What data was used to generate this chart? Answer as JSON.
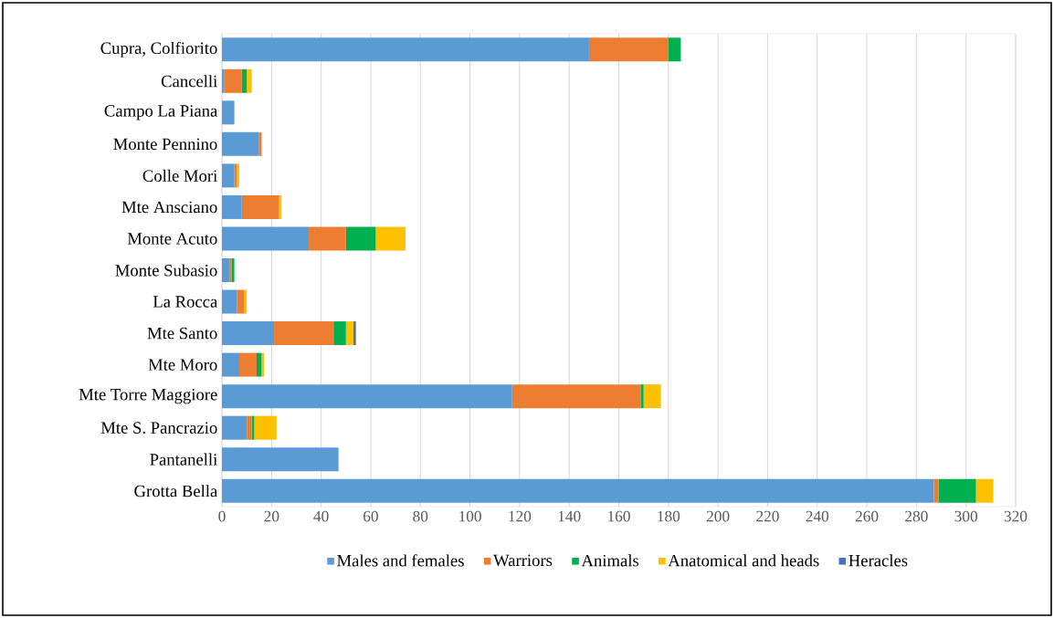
{
  "chart_data": {
    "type": "bar",
    "orientation": "horizontal",
    "stacked": true,
    "categories": [
      "Cupra, Colfiorito",
      "Cancelli",
      "Campo La Piana",
      "Monte Pennino",
      "Colle Mori",
      "Mte Ansciano",
      "Monte Acuto",
      "Monte Subasio",
      "La Rocca",
      "Mte Santo",
      "Mte Moro",
      "Mte Torre Maggiore",
      "Mte S. Pancrazio",
      "Pantanelli",
      "Grotta Bella"
    ],
    "series": [
      {
        "name": "Males and females",
        "color": "#5b9bd5",
        "values": [
          148,
          1,
          5,
          15,
          5,
          8,
          35,
          3,
          6,
          21,
          7,
          117,
          10,
          47,
          287
        ]
      },
      {
        "name": "Warriors",
        "color": "#ed7d31",
        "values": [
          32,
          7,
          0,
          1,
          1,
          15,
          15,
          1,
          3,
          24,
          7,
          52,
          2,
          0,
          2
        ]
      },
      {
        "name": "Animals",
        "color": "#00b050",
        "values": [
          5,
          2,
          0,
          0,
          0,
          0,
          12,
          1,
          0,
          5,
          2,
          1,
          1,
          0,
          15
        ]
      },
      {
        "name": "Anatomical and heads",
        "color": "#ffc000",
        "values": [
          0,
          2,
          0,
          0,
          1,
          1,
          12,
          0,
          1,
          3,
          1,
          7,
          9,
          0,
          7
        ]
      },
      {
        "name": "Heracles",
        "color": "#4472c4",
        "values": [
          0,
          0,
          0,
          0,
          0,
          0,
          0,
          0,
          0,
          1,
          0,
          0,
          0,
          0,
          0
        ]
      }
    ],
    "xlim": [
      0,
      320
    ],
    "xticks": [
      0,
      20,
      40,
      60,
      80,
      100,
      120,
      140,
      160,
      180,
      200,
      220,
      240,
      260,
      280,
      300,
      320
    ],
    "grid": "x",
    "legend": "bottom"
  }
}
